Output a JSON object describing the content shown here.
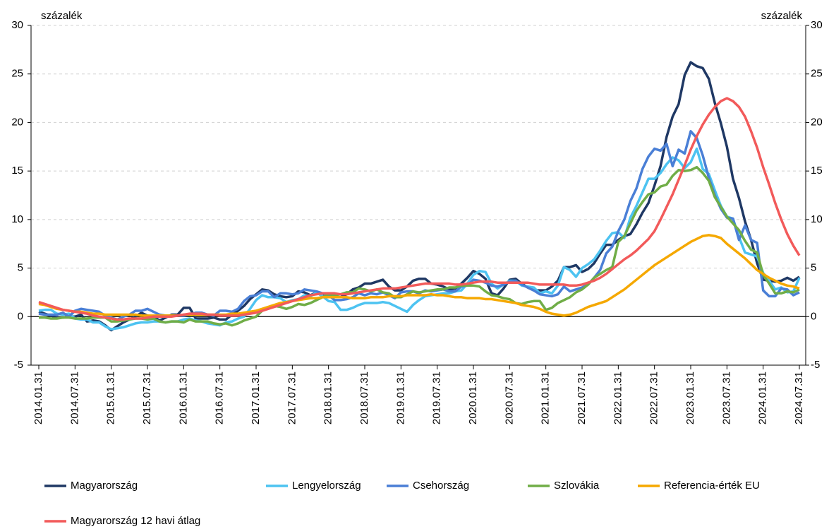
{
  "chart_data": {
    "type": "line",
    "y_label": "százalék",
    "y2_label": "százalék",
    "categories": [
      "2014.01.31",
      null,
      null,
      null,
      null,
      null,
      "2014.07.31",
      null,
      null,
      null,
      null,
      null,
      "2015.01.31",
      null,
      null,
      null,
      null,
      null,
      "2015.07.31",
      null,
      null,
      null,
      null,
      null,
      "2016.01.31",
      null,
      null,
      null,
      null,
      null,
      "2016.07.31",
      null,
      null,
      null,
      null,
      null,
      "2017.01.31",
      null,
      null,
      null,
      null,
      null,
      "2017.07.31",
      null,
      null,
      null,
      null,
      null,
      "2018.01.31",
      null,
      null,
      null,
      null,
      null,
      "2018.07.31",
      null,
      null,
      null,
      null,
      null,
      "2019.01.31",
      null,
      null,
      null,
      null,
      null,
      "2019.07.31",
      null,
      null,
      null,
      null,
      null,
      "2020.01.31",
      null,
      null,
      null,
      null,
      null,
      "2020.07.31",
      null,
      null,
      null,
      null,
      null,
      "2021.01.31",
      null,
      null,
      null,
      null,
      null,
      "2021.07.31",
      null,
      null,
      null,
      null,
      null,
      "2022.01.31",
      null,
      null,
      null,
      null,
      null,
      "2022.07.31",
      null,
      null,
      null,
      null,
      null,
      "2023.01.31",
      null,
      null,
      null,
      null,
      null,
      "2023.07.31",
      null,
      null,
      null,
      null,
      null,
      "2024.01.31",
      null,
      null,
      null,
      null,
      null,
      "2024.07.31"
    ],
    "ylim": [
      -5,
      30
    ],
    "yticks": [
      -5,
      0,
      5,
      10,
      15,
      20,
      25,
      30
    ],
    "y2lim": [
      -5,
      30
    ],
    "y2ticks": [
      -5,
      0,
      5,
      10,
      15,
      20,
      25,
      30
    ],
    "grid": true,
    "legend": "bottom",
    "series": [
      {
        "name": "Magyarország",
        "color": "#1f3864",
        "values": [
          0.5,
          0.3,
          0.1,
          -0.1,
          -0.1,
          0.0,
          0.0,
          0.2,
          -0.5,
          -0.4,
          -0.5,
          -0.9,
          -1.4,
          -1.0,
          -0.6,
          -0.3,
          0.0,
          0.4,
          0.1,
          0.0,
          -0.4,
          -0.1,
          0.2,
          0.2,
          0.9,
          0.9,
          -0.2,
          -0.2,
          -0.2,
          -0.1,
          -0.3,
          -0.3,
          0.2,
          0.6,
          1.1,
          1.8,
          2.3,
          2.8,
          2.7,
          2.3,
          2.1,
          2.0,
          2.1,
          2.6,
          2.5,
          2.2,
          2.5,
          2.1,
          2.2,
          2.0,
          2.0,
          2.3,
          2.8,
          3.0,
          3.4,
          3.4,
          3.6,
          3.8,
          3.1,
          2.7,
          2.7,
          3.1,
          3.7,
          3.9,
          3.9,
          3.4,
          3.3,
          3.1,
          2.8,
          2.9,
          3.4,
          4.0,
          4.7,
          4.4,
          3.9,
          2.4,
          2.2,
          2.9,
          3.8,
          3.9,
          3.4,
          3.0,
          2.7,
          2.7,
          2.7,
          3.1,
          3.7,
          5.1,
          5.1,
          5.3,
          4.6,
          4.9,
          5.5,
          6.5,
          7.4,
          7.4,
          7.9,
          8.3,
          8.5,
          9.5,
          10.7,
          11.7,
          13.5,
          15.5,
          18.5,
          20.6,
          21.9,
          24.9,
          26.2,
          25.8,
          25.6,
          24.5,
          22.0,
          19.9,
          17.5,
          14.2,
          12.2,
          9.8,
          7.9,
          5.5,
          3.8,
          3.7,
          3.6,
          3.7,
          4.0,
          3.7,
          4.1
        ]
      },
      {
        "name": "Lengyelország",
        "color": "#4dc3f1",
        "values": [
          0.6,
          0.7,
          0.7,
          0.3,
          0.2,
          0.3,
          -0.2,
          -0.3,
          -0.3,
          -0.6,
          -0.6,
          -1.0,
          -1.3,
          -1.2,
          -1.1,
          -0.9,
          -0.7,
          -0.6,
          -0.6,
          -0.5,
          -0.5,
          -0.6,
          -0.5,
          -0.5,
          -0.3,
          -0.2,
          -0.4,
          -0.5,
          -0.7,
          -0.8,
          -0.9,
          -0.6,
          -0.5,
          -0.2,
          0.0,
          0.8,
          1.7,
          2.2,
          2.0,
          2.0,
          1.9,
          1.5,
          1.7,
          1.8,
          2.2,
          2.1,
          2.5,
          2.1,
          1.6,
          1.5,
          0.7,
          0.7,
          0.9,
          1.2,
          1.4,
          1.4,
          1.4,
          1.5,
          1.4,
          1.1,
          0.8,
          0.5,
          1.2,
          1.7,
          2.1,
          2.2,
          2.3,
          2.4,
          2.4,
          2.6,
          2.7,
          3.4,
          4.3,
          4.7,
          4.6,
          3.4,
          2.9,
          3.3,
          3.7,
          3.7,
          3.2,
          3.1,
          3.0,
          2.4,
          2.6,
          2.4,
          3.2,
          5.1,
          4.8,
          4.1,
          5.0,
          5.4,
          5.9,
          6.8,
          7.8,
          8.6,
          8.7,
          8.1,
          10.2,
          11.4,
          12.8,
          14.2,
          14.2,
          14.8,
          15.7,
          16.4,
          16.1,
          15.3,
          15.9,
          17.3,
          15.2,
          14.7,
          13.0,
          11.4,
          10.3,
          10.1,
          8.2,
          6.6,
          6.4,
          6.2,
          4.5,
          3.7,
          2.8,
          3.0,
          2.5,
          2.6,
          4.0
        ]
      },
      {
        "name": "Csehország",
        "color": "#4a7fd6",
        "values": [
          0.3,
          0.2,
          0.2,
          0.2,
          0.4,
          0.0,
          0.6,
          0.8,
          0.7,
          0.6,
          0.5,
          0.1,
          -0.1,
          -0.3,
          0.0,
          0.2,
          0.6,
          0.6,
          0.8,
          0.5,
          0.2,
          0.1,
          0.1,
          0.1,
          0.1,
          0.2,
          0.4,
          0.4,
          0.2,
          0.1,
          0.6,
          0.6,
          0.5,
          0.8,
          1.6,
          2.1,
          2.2,
          2.6,
          2.6,
          2.0,
          2.4,
          2.4,
          2.3,
          2.4,
          2.8,
          2.7,
          2.6,
          2.4,
          2.2,
          1.7,
          1.7,
          1.8,
          2.0,
          2.4,
          2.2,
          2.4,
          2.3,
          2.5,
          2.2,
          1.9,
          2.5,
          2.6,
          2.6,
          2.4,
          2.7,
          2.6,
          2.7,
          2.8,
          2.6,
          2.6,
          3.1,
          3.2,
          3.8,
          3.7,
          3.5,
          3.2,
          3.1,
          3.3,
          3.6,
          3.7,
          3.3,
          3.0,
          2.7,
          2.3,
          2.2,
          2.1,
          2.3,
          3.1,
          2.6,
          2.8,
          3.0,
          3.3,
          4.0,
          4.8,
          6.5,
          7.2,
          8.8,
          10.0,
          11.9,
          13.2,
          15.2,
          16.5,
          17.3,
          17.1,
          17.8,
          15.5,
          17.2,
          16.8,
          19.1,
          18.4,
          16.6,
          14.3,
          12.5,
          11.1,
          10.2,
          10.1,
          7.9,
          9.4,
          7.9,
          7.6,
          2.7,
          2.1,
          2.1,
          2.9,
          2.8,
          2.2,
          2.5
        ]
      },
      {
        "name": "Szlovákia",
        "color": "#70ad47",
        "values": [
          -0.1,
          -0.1,
          -0.2,
          -0.2,
          -0.1,
          -0.1,
          -0.2,
          -0.2,
          -0.2,
          -0.1,
          -0.1,
          -0.1,
          -0.5,
          -0.5,
          -0.4,
          -0.3,
          -0.2,
          -0.2,
          -0.3,
          -0.2,
          -0.5,
          -0.6,
          -0.5,
          -0.5,
          -0.6,
          -0.3,
          -0.5,
          -0.5,
          -0.5,
          -0.7,
          -0.8,
          -0.7,
          -0.9,
          -0.7,
          -0.4,
          -0.2,
          0.0,
          0.6,
          0.9,
          1.1,
          1.0,
          0.8,
          1.0,
          1.3,
          1.2,
          1.4,
          1.7,
          2.0,
          2.3,
          2.2,
          2.3,
          2.5,
          2.5,
          2.9,
          2.8,
          2.6,
          2.8,
          2.5,
          2.4,
          2.0,
          2.0,
          2.3,
          2.6,
          2.5,
          2.6,
          2.7,
          2.8,
          2.8,
          3.0,
          3.0,
          3.2,
          3.2,
          3.2,
          3.1,
          2.6,
          2.2,
          2.1,
          1.9,
          1.8,
          1.4,
          1.3,
          1.5,
          1.6,
          1.6,
          0.7,
          0.9,
          1.4,
          1.7,
          2.0,
          2.5,
          2.8,
          3.3,
          4.0,
          4.4,
          4.8,
          5.1,
          7.7,
          8.3,
          9.6,
          10.9,
          11.8,
          12.6,
          12.8,
          13.4,
          13.6,
          14.5,
          15.1,
          15.0,
          15.1,
          15.4,
          14.8,
          14.0,
          12.3,
          11.3,
          10.3,
          9.6,
          8.9,
          7.8,
          6.9,
          6.6,
          4.3,
          3.4,
          2.4,
          2.4,
          2.6,
          2.5,
          2.8
        ]
      },
      {
        "name": "Referencia-érték EU",
        "color": "#f5a800",
        "values": [
          1.3,
          1.2,
          1.0,
          0.8,
          0.7,
          0.6,
          0.5,
          0.5,
          0.4,
          0.3,
          0.3,
          0.2,
          0.2,
          0.2,
          0.2,
          0.2,
          0.2,
          0.1,
          0.1,
          0.1,
          0.1,
          0.1,
          0.1,
          0.1,
          0.2,
          0.2,
          0.2,
          0.2,
          0.2,
          0.2,
          0.2,
          0.2,
          0.3,
          0.3,
          0.4,
          0.5,
          0.6,
          0.8,
          1.0,
          1.2,
          1.4,
          1.5,
          1.6,
          1.7,
          1.8,
          1.9,
          1.9,
          2.0,
          2.0,
          2.0,
          2.0,
          2.0,
          1.9,
          1.9,
          1.9,
          2.0,
          2.0,
          2.0,
          2.1,
          2.1,
          2.1,
          2.2,
          2.2,
          2.2,
          2.2,
          2.3,
          2.2,
          2.2,
          2.1,
          2.0,
          2.0,
          1.9,
          1.9,
          1.9,
          1.8,
          1.8,
          1.7,
          1.6,
          1.5,
          1.4,
          1.2,
          1.1,
          1.0,
          0.8,
          0.5,
          0.3,
          0.2,
          0.1,
          0.2,
          0.4,
          0.7,
          1.0,
          1.2,
          1.4,
          1.6,
          2.0,
          2.4,
          2.8,
          3.3,
          3.8,
          4.3,
          4.8,
          5.3,
          5.7,
          6.1,
          6.5,
          6.9,
          7.3,
          7.7,
          8.0,
          8.3,
          8.4,
          8.3,
          8.1,
          7.5,
          7.0,
          6.5,
          6.0,
          5.4,
          4.8,
          4.4,
          4.0,
          3.7,
          3.4,
          3.2,
          3.1,
          2.9
        ]
      },
      {
        "name": "Magyarország 12 havi átlag",
        "color": "#f25a5a",
        "values": [
          1.5,
          1.3,
          1.1,
          0.9,
          0.7,
          0.6,
          0.5,
          0.4,
          0.3,
          0.1,
          0.0,
          -0.1,
          -0.2,
          -0.3,
          -0.3,
          -0.2,
          -0.2,
          -0.2,
          -0.1,
          0.0,
          0.0,
          0.0,
          0.0,
          0.1,
          0.2,
          0.3,
          0.3,
          0.3,
          0.2,
          0.2,
          0.1,
          0.1,
          0.1,
          0.1,
          0.2,
          0.3,
          0.4,
          0.6,
          0.8,
          1.0,
          1.2,
          1.4,
          1.6,
          1.8,
          2.0,
          2.2,
          2.3,
          2.4,
          2.4,
          2.4,
          2.3,
          2.3,
          2.4,
          2.5,
          2.6,
          2.7,
          2.8,
          2.9,
          2.9,
          2.9,
          3.0,
          3.1,
          3.2,
          3.3,
          3.4,
          3.4,
          3.4,
          3.4,
          3.4,
          3.3,
          3.3,
          3.4,
          3.5,
          3.6,
          3.6,
          3.6,
          3.5,
          3.5,
          3.5,
          3.5,
          3.5,
          3.5,
          3.4,
          3.3,
          3.3,
          3.3,
          3.3,
          3.3,
          3.2,
          3.2,
          3.3,
          3.5,
          3.7,
          4.0,
          4.4,
          4.9,
          5.4,
          5.9,
          6.3,
          6.8,
          7.4,
          8.0,
          8.8,
          10.0,
          11.3,
          12.6,
          14.1,
          15.6,
          17.2,
          18.6,
          19.8,
          20.8,
          21.6,
          22.2,
          22.5,
          22.2,
          21.6,
          20.6,
          19.1,
          17.4,
          15.4,
          13.6,
          11.7,
          10.0,
          8.5,
          7.3,
          6.3
        ]
      }
    ]
  }
}
